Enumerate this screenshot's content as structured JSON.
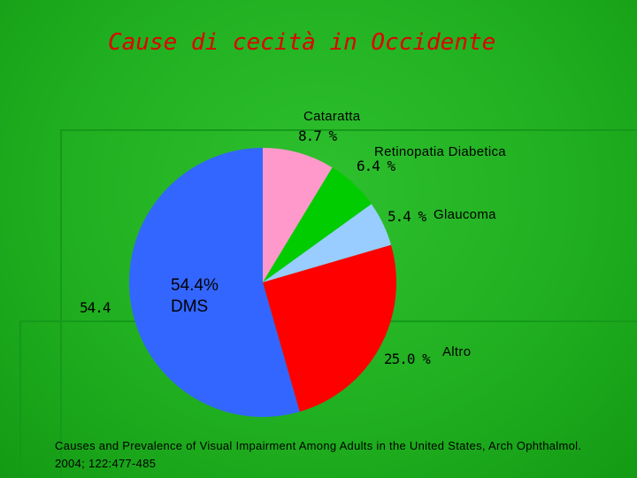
{
  "title": "Cause di cecità in Occidente",
  "source": "Causes and Prevalence of Visual Impairment Among Adults in the United States, Arch Ophthalmol. 2004; 122:477-485",
  "chart_data": {
    "type": "pie",
    "title": "Cause di cecità in Occidente",
    "slices": [
      {
        "label": "Cataratta",
        "value": 8.7,
        "pct_label": "8.7 %",
        "color": "#ff99cc"
      },
      {
        "label": "Retinopatia Diabetica",
        "value": 6.4,
        "pct_label": "6.4 %",
        "color": "#00cc00"
      },
      {
        "label": "Glaucoma",
        "value": 5.4,
        "pct_label": "5.4 %",
        "color": "#99ccff"
      },
      {
        "label": "Altro",
        "value": 25.0,
        "pct_label": "25.0 %",
        "color": "#ff0000"
      },
      {
        "label": "DMS",
        "value": 54.4,
        "pct_label": "54.4%",
        "color": "#3366ff"
      }
    ],
    "extra_label": "54.4"
  }
}
